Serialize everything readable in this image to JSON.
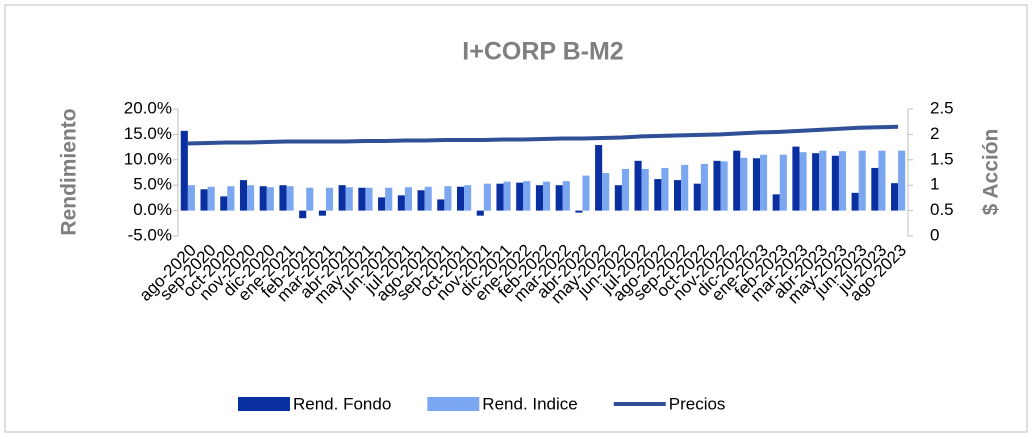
{
  "chart_data": {
    "type": "bar-line",
    "title": "I+CORP B-M2",
    "y_label": "Rendimiento",
    "y2_label": "$ Acción",
    "categories": [
      "ago-2020",
      "sep-2020",
      "oct-2020",
      "nov-2020",
      "dic-2020",
      "ene-2021",
      "feb-2021",
      "mar-2021",
      "abr-2021",
      "may-2021",
      "jun-2021",
      "jul-2021",
      "ago-2021",
      "sep-2021",
      "oct-2021",
      "nov-2021",
      "dic-2021",
      "ene-2022",
      "feb-2022",
      "mar-2022",
      "abr-2022",
      "may-2022",
      "jun-2022",
      "jul-2022",
      "ago-2022",
      "sep-2022",
      "oct-2022",
      "nov-2022",
      "dic-2022",
      "ene-2023",
      "feb-2023",
      "mar-2023",
      "abr-2023",
      "may-2023",
      "jun-2023",
      "jul-2023",
      "ago-2023"
    ],
    "series": [
      {
        "name": "Rend. Fondo",
        "type": "bar",
        "color": "#0a2fa0",
        "values": [
          15.7,
          4.2,
          2.8,
          6.0,
          4.8,
          5.0,
          -1.5,
          -1.0,
          5.0,
          4.5,
          2.6,
          3.0,
          4.0,
          2.2,
          4.7,
          -1.0,
          5.3,
          5.5,
          5.0,
          5.0,
          -0.4,
          12.9,
          5.0,
          9.8,
          6.2,
          6.0,
          5.3,
          9.8,
          11.8,
          10.3,
          3.2,
          12.6,
          11.3,
          10.8,
          3.5,
          8.4,
          5.4
        ]
      },
      {
        "name": "Rend. Indice",
        "type": "bar",
        "color": "#7ba7f0",
        "values": [
          5.0,
          4.7,
          4.8,
          5.0,
          4.6,
          4.8,
          4.5,
          4.5,
          4.6,
          4.5,
          4.5,
          4.6,
          4.7,
          4.8,
          5.0,
          5.3,
          5.7,
          5.8,
          5.7,
          5.8,
          6.9,
          7.4,
          8.2,
          8.2,
          8.4,
          9.0,
          9.2,
          9.7,
          10.4,
          11.0,
          11.0,
          11.5,
          11.8,
          11.7,
          11.8,
          11.8,
          11.8
        ]
      },
      {
        "name": "Precios",
        "type": "line",
        "axis": "y2",
        "color": "#2f4f96",
        "values": [
          1.82,
          1.83,
          1.84,
          1.84,
          1.85,
          1.86,
          1.86,
          1.86,
          1.86,
          1.87,
          1.87,
          1.88,
          1.88,
          1.89,
          1.89,
          1.89,
          1.9,
          1.9,
          1.91,
          1.92,
          1.92,
          1.93,
          1.94,
          1.96,
          1.97,
          1.98,
          1.99,
          2.0,
          2.02,
          2.04,
          2.05,
          2.07,
          2.09,
          2.11,
          2.13,
          2.14,
          2.15
        ]
      }
    ],
    "ylim": [
      -5,
      20
    ],
    "yticks": [
      {
        "value": -5,
        "label": "-5.0%"
      },
      {
        "value": 0,
        "label": "0.0%"
      },
      {
        "value": 5,
        "label": "5.0%"
      },
      {
        "value": 10,
        "label": "10.0%"
      },
      {
        "value": 15,
        "label": "15.0%"
      },
      {
        "value": 20,
        "label": "20.0%"
      }
    ],
    "y2lim": [
      0,
      2.5
    ],
    "y2ticks": [
      0,
      0.5,
      1,
      1.5,
      2,
      2.5
    ],
    "legend": "bottom"
  }
}
